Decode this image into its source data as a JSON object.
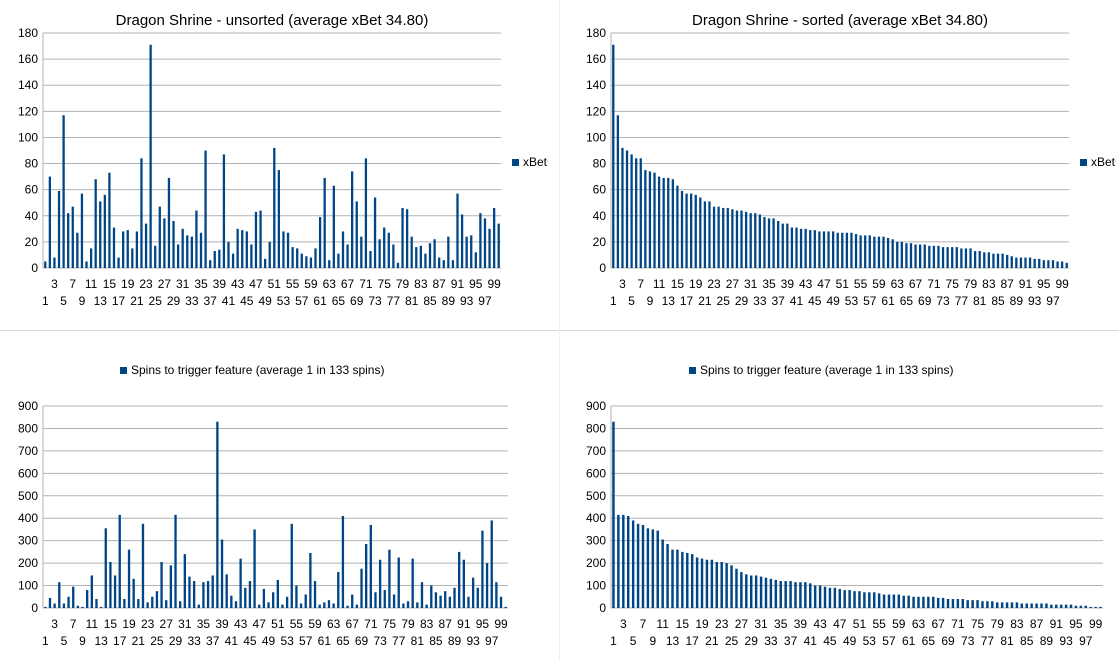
{
  "colors": {
    "bar": "#004586",
    "grid": "#b3b3b3",
    "axis": "#b3b3b3"
  },
  "chart_data": [
    {
      "type": "bar",
      "title": "Dragon Shrine - unsorted (average xBet 34.80)",
      "legend": "right",
      "series": [
        {
          "name": "xBet"
        }
      ],
      "ylim": [
        0,
        180
      ],
      "yticks": [
        0,
        20,
        40,
        60,
        80,
        100,
        120,
        140,
        160,
        180
      ],
      "x": [
        1,
        2,
        3,
        4,
        5,
        6,
        7,
        8,
        9,
        10,
        11,
        12,
        13,
        14,
        15,
        16,
        17,
        18,
        19,
        20,
        21,
        22,
        23,
        24,
        25,
        26,
        27,
        28,
        29,
        30,
        31,
        32,
        33,
        34,
        35,
        36,
        37,
        38,
        39,
        40,
        41,
        42,
        43,
        44,
        45,
        46,
        47,
        48,
        49,
        50,
        51,
        52,
        53,
        54,
        55,
        56,
        57,
        58,
        59,
        60,
        61,
        62,
        63,
        64,
        65,
        66,
        67,
        68,
        69,
        70,
        71,
        72,
        73,
        74,
        75,
        76,
        77,
        78,
        79,
        80,
        81,
        82,
        83,
        84,
        85,
        86,
        87,
        88,
        89,
        90,
        91,
        92,
        93,
        94,
        95,
        96,
        97,
        98,
        99,
        100
      ],
      "values": [
        5,
        70,
        8,
        59,
        117,
        42,
        47,
        27,
        57,
        5,
        15,
        68,
        51,
        56,
        73,
        31,
        8,
        28,
        29,
        15,
        28,
        84,
        34,
        171,
        17,
        47,
        38,
        69,
        36,
        18,
        30,
        25,
        24,
        44,
        27,
        90,
        6,
        13,
        14,
        87,
        20,
        11,
        30,
        29,
        28,
        18,
        43,
        44,
        7,
        20,
        92,
        75,
        28,
        27,
        16,
        15,
        11,
        9,
        8,
        15,
        39,
        69,
        6,
        63,
        11,
        28,
        18,
        74,
        51,
        24,
        84,
        13,
        54,
        22,
        31,
        27,
        18,
        4,
        46,
        45,
        24,
        16,
        17,
        11,
        19,
        22,
        8,
        6,
        24,
        6,
        57,
        41,
        24,
        25,
        12,
        42,
        38,
        30,
        46,
        34
      ]
    },
    {
      "type": "bar",
      "title": "Dragon Shrine - sorted (average xBet 34.80)",
      "legend": "right",
      "series": [
        {
          "name": "xBet"
        }
      ],
      "ylim": [
        0,
        180
      ],
      "yticks": [
        0,
        20,
        40,
        60,
        80,
        100,
        120,
        140,
        160,
        180
      ],
      "x": [
        1,
        2,
        3,
        4,
        5,
        6,
        7,
        8,
        9,
        10,
        11,
        12,
        13,
        14,
        15,
        16,
        17,
        18,
        19,
        20,
        21,
        22,
        23,
        24,
        25,
        26,
        27,
        28,
        29,
        30,
        31,
        32,
        33,
        34,
        35,
        36,
        37,
        38,
        39,
        40,
        41,
        42,
        43,
        44,
        45,
        46,
        47,
        48,
        49,
        50,
        51,
        52,
        53,
        54,
        55,
        56,
        57,
        58,
        59,
        60,
        61,
        62,
        63,
        64,
        65,
        66,
        67,
        68,
        69,
        70,
        71,
        72,
        73,
        74,
        75,
        76,
        77,
        78,
        79,
        80,
        81,
        82,
        83,
        84,
        85,
        86,
        87,
        88,
        89,
        90,
        91,
        92,
        93,
        94,
        95,
        96,
        97,
        98,
        99,
        100
      ],
      "values": [
        171,
        117,
        92,
        90,
        87,
        84,
        84,
        75,
        74,
        73,
        70,
        69,
        69,
        68,
        63,
        59,
        57,
        57,
        56,
        54,
        51,
        51,
        47,
        47,
        46,
        46,
        45,
        44,
        44,
        43,
        42,
        42,
        41,
        39,
        38,
        38,
        36,
        34,
        34,
        31,
        31,
        30,
        30,
        29,
        29,
        28,
        28,
        28,
        28,
        27,
        27,
        27,
        27,
        26,
        25,
        25,
        25,
        24,
        24,
        24,
        23,
        22,
        20,
        20,
        19,
        19,
        18,
        18,
        18,
        17,
        17,
        17,
        16,
        16,
        16,
        16,
        15,
        15,
        15,
        13,
        13,
        12,
        12,
        11,
        11,
        11,
        10,
        9,
        8,
        8,
        8,
        8,
        7,
        7,
        6,
        6,
        6,
        5,
        5,
        4
      ]
    },
    {
      "type": "bar",
      "title": "",
      "legend": "top",
      "series": [
        {
          "name": "Spins to trigger feature (average 1 in 133 spins)"
        }
      ],
      "ylim": [
        0,
        900
      ],
      "yticks": [
        0,
        100,
        200,
        300,
        400,
        500,
        600,
        700,
        800,
        900
      ],
      "x": [
        1,
        2,
        3,
        4,
        5,
        6,
        7,
        8,
        9,
        10,
        11,
        12,
        13,
        14,
        15,
        16,
        17,
        18,
        19,
        20,
        21,
        22,
        23,
        24,
        25,
        26,
        27,
        28,
        29,
        30,
        31,
        32,
        33,
        34,
        35,
        36,
        37,
        38,
        39,
        40,
        41,
        42,
        43,
        44,
        45,
        46,
        47,
        48,
        49,
        50,
        51,
        52,
        53,
        54,
        55,
        56,
        57,
        58,
        59,
        60,
        61,
        62,
        63,
        64,
        65,
        66,
        67,
        68,
        69,
        70,
        71,
        72,
        73,
        74,
        75,
        76,
        77,
        78,
        79,
        80,
        81,
        82,
        83,
        84,
        85,
        86,
        87,
        88,
        89,
        90,
        91,
        92,
        93,
        94,
        95,
        96,
        97,
        98,
        99,
        100
      ],
      "values": [
        5,
        45,
        20,
        115,
        20,
        50,
        95,
        10,
        5,
        80,
        145,
        40,
        5,
        355,
        205,
        145,
        415,
        40,
        260,
        130,
        40,
        375,
        25,
        50,
        75,
        205,
        35,
        190,
        415,
        30,
        240,
        140,
        120,
        15,
        115,
        120,
        145,
        830,
        305,
        150,
        55,
        30,
        220,
        90,
        120,
        350,
        15,
        85,
        25,
        70,
        125,
        15,
        50,
        375,
        100,
        20,
        60,
        245,
        120,
        15,
        25,
        35,
        20,
        160,
        410,
        10,
        60,
        15,
        175,
        285,
        370,
        70,
        215,
        80,
        260,
        60,
        225,
        20,
        30,
        220,
        25,
        115,
        15,
        100,
        70,
        55,
        75,
        50,
        90,
        250,
        215,
        50,
        135,
        90,
        345,
        200,
        390,
        115,
        50,
        5
      ]
    },
    {
      "type": "bar",
      "title": "",
      "legend": "top",
      "series": [
        {
          "name": "Spins to trigger feature (average 1 in 133 spins)"
        }
      ],
      "ylim": [
        0,
        900
      ],
      "yticks": [
        0,
        100,
        200,
        300,
        400,
        500,
        600,
        700,
        800,
        900
      ],
      "x": [
        1,
        2,
        3,
        4,
        5,
        6,
        7,
        8,
        9,
        10,
        11,
        12,
        13,
        14,
        15,
        16,
        17,
        18,
        19,
        20,
        21,
        22,
        23,
        24,
        25,
        26,
        27,
        28,
        29,
        30,
        31,
        32,
        33,
        34,
        35,
        36,
        37,
        38,
        39,
        40,
        41,
        42,
        43,
        44,
        45,
        46,
        47,
        48,
        49,
        50,
        51,
        52,
        53,
        54,
        55,
        56,
        57,
        58,
        59,
        60,
        61,
        62,
        63,
        64,
        65,
        66,
        67,
        68,
        69,
        70,
        71,
        72,
        73,
        74,
        75,
        76,
        77,
        78,
        79,
        80,
        81,
        82,
        83,
        84,
        85,
        86,
        87,
        88,
        89,
        90,
        91,
        92,
        93,
        94,
        95,
        96,
        97,
        98,
        99,
        100
      ],
      "values": [
        830,
        415,
        415,
        410,
        390,
        375,
        370,
        355,
        350,
        345,
        305,
        285,
        260,
        260,
        250,
        245,
        240,
        225,
        220,
        215,
        215,
        205,
        205,
        200,
        190,
        175,
        160,
        150,
        145,
        145,
        140,
        135,
        130,
        125,
        120,
        120,
        120,
        115,
        115,
        115,
        110,
        100,
        100,
        95,
        90,
        90,
        85,
        80,
        80,
        75,
        75,
        70,
        70,
        70,
        65,
        60,
        60,
        60,
        60,
        55,
        55,
        50,
        50,
        50,
        50,
        50,
        45,
        45,
        40,
        40,
        40,
        40,
        35,
        35,
        35,
        30,
        30,
        30,
        25,
        25,
        25,
        25,
        25,
        20,
        20,
        20,
        20,
        20,
        20,
        15,
        15,
        15,
        15,
        15,
        10,
        10,
        10,
        5,
        5,
        5
      ]
    }
  ]
}
